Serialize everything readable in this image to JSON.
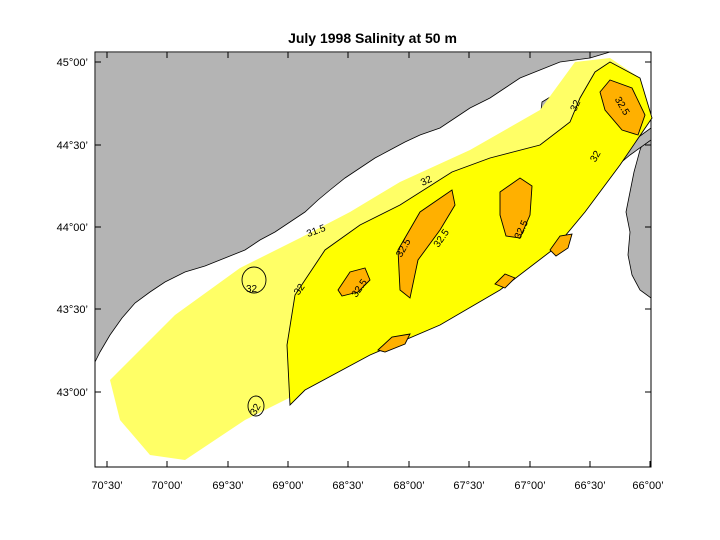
{
  "title": "July 1998  Salinity at 50 m",
  "x_ticks": [
    "70°30’",
    "70°00’",
    "69°30’",
    "69°00’",
    "68°30’",
    "68°00’",
    "67°30’",
    "67°00’",
    "66°30’",
    "66°00’"
  ],
  "y_ticks": [
    "45°00’",
    "44°30’",
    "44°00’",
    "43°30’",
    "43°00’"
  ],
  "contour_labels": [
    "32",
    "32",
    "32",
    "32",
    "32",
    "32",
    "32.5",
    "32.5",
    "32.5",
    "32.5",
    "32.5",
    "31.5"
  ],
  "colors": {
    "land": "#b4b4b4",
    "salinity_31_5_to_32": "#ffff66",
    "salinity_32_to_32_5": "#ffff00",
    "salinity_above_32_5": "#ffb000",
    "contour_line": "#000000"
  }
}
